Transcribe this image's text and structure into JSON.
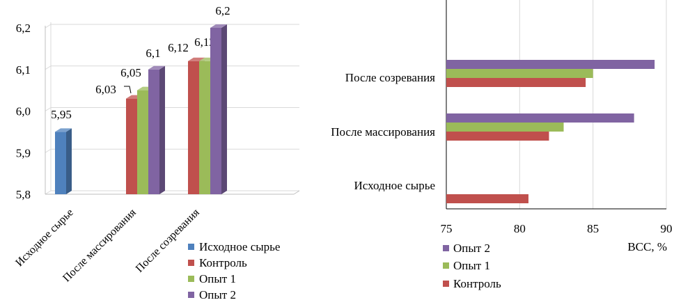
{
  "chart_data": [
    {
      "type": "bar",
      "orientation": "vertical",
      "style": "3d",
      "categories": [
        "Исходное сырье",
        "После массирования",
        "После созревания"
      ],
      "series": [
        {
          "name": "Исходное сырье",
          "color": "#4f81bd",
          "values": [
            5.95,
            null,
            null
          ],
          "labels": [
            "5,95",
            "",
            ""
          ]
        },
        {
          "name": "Контроль",
          "color": "#c0504d",
          "values": [
            null,
            6.03,
            6.12
          ],
          "labels": [
            "",
            "6,03",
            "6,12"
          ]
        },
        {
          "name": "Опыт 1",
          "color": "#9bbb59",
          "values": [
            null,
            6.05,
            6.12
          ],
          "labels": [
            "",
            "6,05",
            "6,12"
          ]
        },
        {
          "name": "Опыт 2",
          "color": "#8064a2",
          "values": [
            null,
            6.1,
            6.2
          ],
          "labels": [
            "",
            "6,1",
            "6,2"
          ]
        }
      ],
      "ylim": [
        5.8,
        6.2
      ],
      "yticks": [
        "5,8",
        "5,9",
        "6,0",
        "6,1",
        "6,2"
      ],
      "grid": true,
      "legend": "bottom-right"
    },
    {
      "type": "bar",
      "orientation": "horizontal",
      "categories": [
        "Исходное сырье",
        "После массирования",
        "После созревания"
      ],
      "series": [
        {
          "name": "Контроль",
          "color": "#c0504d",
          "values": [
            80.6,
            82.0,
            84.5
          ]
        },
        {
          "name": "Опыт 1",
          "color": "#9bbb59",
          "values": [
            null,
            83.0,
            85.0
          ]
        },
        {
          "name": "Опыт 2",
          "color": "#8064a2",
          "values": [
            null,
            87.8,
            89.2
          ]
        }
      ],
      "xlim": [
        75,
        90
      ],
      "xticks": [
        "75",
        "80",
        "85",
        "90"
      ],
      "xlabel": "ВСС, %",
      "grid": true,
      "legend": "bottom-left",
      "legend_order": [
        "Опыт 2",
        "Опыт 1",
        "Контроль"
      ]
    }
  ]
}
